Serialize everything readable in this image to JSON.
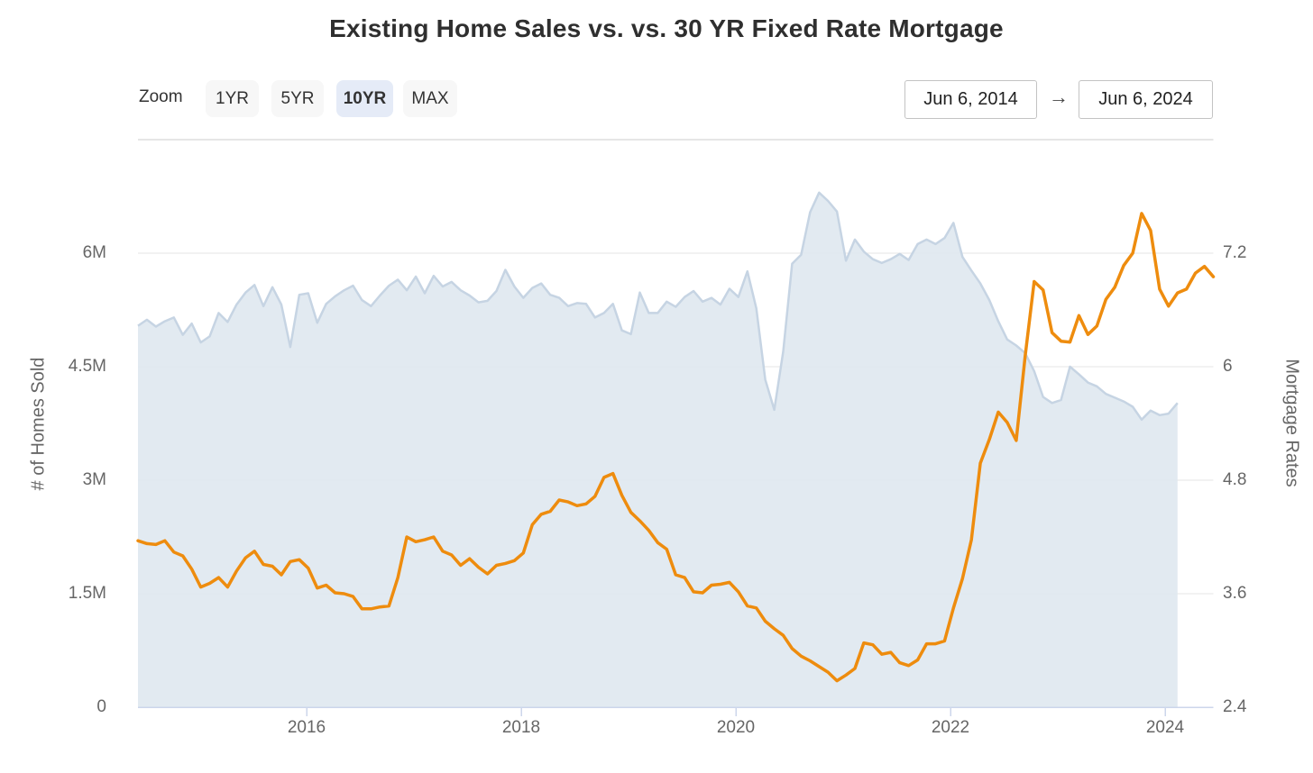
{
  "title": "Existing Home Sales vs. vs. 30 YR Fixed Rate Mortgage",
  "toolbar": {
    "zoom_label": "Zoom",
    "buttons": [
      {
        "label": "1YR",
        "active": false
      },
      {
        "label": "5YR",
        "active": false
      },
      {
        "label": "10YR",
        "active": true
      },
      {
        "label": "MAX",
        "active": false
      }
    ],
    "range_start": "Jun 6, 2014",
    "arrow": "→",
    "range_end": "Jun 6, 2024"
  },
  "chart_data": {
    "type": "area+line",
    "x_start": "Jun 2014",
    "x_end": "Jun 2024",
    "x_ticks": [
      "2016",
      "2018",
      "2020",
      "2022",
      "2024"
    ],
    "left_axis": {
      "title": "# of Homes Sold",
      "ticks": [
        "6M",
        "4.5M",
        "3M",
        "1.5M",
        "0"
      ],
      "range": [
        0,
        7500000
      ],
      "grid": true
    },
    "right_axis": {
      "title": "Mortgage Rates",
      "ticks": [
        "7.2",
        "6",
        "4.8",
        "3.6",
        "2.4"
      ],
      "range": [
        2.4,
        8.4
      ]
    },
    "series": [
      {
        "name": "Existing Home Sales",
        "type": "area",
        "axis": "left",
        "unit": "millions of homes, monthly, Jun 2014 - Feb 2024",
        "fill_color": "#dfe8f0",
        "line_color": "#c6d4e3",
        "values": [
          5.04,
          5.12,
          5.03,
          5.1,
          5.15,
          4.92,
          5.07,
          4.82,
          4.9,
          5.21,
          5.09,
          5.32,
          5.48,
          5.58,
          5.3,
          5.55,
          5.32,
          4.76,
          5.45,
          5.47,
          5.08,
          5.33,
          5.43,
          5.51,
          5.57,
          5.38,
          5.3,
          5.44,
          5.57,
          5.65,
          5.51,
          5.69,
          5.47,
          5.7,
          5.56,
          5.62,
          5.51,
          5.44,
          5.35,
          5.37,
          5.5,
          5.78,
          5.56,
          5.41,
          5.54,
          5.6,
          5.45,
          5.41,
          5.3,
          5.34,
          5.33,
          5.15,
          5.21,
          5.33,
          4.98,
          4.93,
          5.48,
          5.21,
          5.21,
          5.36,
          5.29,
          5.42,
          5.5,
          5.36,
          5.41,
          5.32,
          5.53,
          5.42,
          5.76,
          5.27,
          4.33,
          3.93,
          4.7,
          5.86,
          5.98,
          6.54,
          6.8,
          6.69,
          6.55,
          5.9,
          6.18,
          6.02,
          5.92,
          5.87,
          5.92,
          5.99,
          5.91,
          6.12,
          6.18,
          6.12,
          6.2,
          6.4,
          5.95,
          5.77,
          5.6,
          5.38,
          5.1,
          4.86,
          4.78,
          4.68,
          4.44,
          4.1,
          4.02,
          4.06,
          4.5,
          4.4,
          4.29,
          4.24,
          4.14,
          4.09,
          4.04,
          3.97,
          3.8,
          3.92,
          3.86,
          3.88,
          4.02
        ]
      },
      {
        "name": "30 YR Fixed Rate Mortgage",
        "type": "line",
        "axis": "right",
        "unit": "percent, monthly, Jun 2014 - Jun 2024",
        "line_color": "#ee8c0e",
        "values": [
          4.16,
          4.13,
          4.12,
          4.16,
          4.04,
          4.0,
          3.86,
          3.67,
          3.71,
          3.77,
          3.67,
          3.84,
          3.98,
          4.05,
          3.91,
          3.89,
          3.8,
          3.94,
          3.96,
          3.87,
          3.66,
          3.69,
          3.61,
          3.6,
          3.57,
          3.44,
          3.44,
          3.46,
          3.47,
          3.77,
          4.2,
          4.15,
          4.17,
          4.2,
          4.05,
          4.01,
          3.9,
          3.97,
          3.88,
          3.81,
          3.9,
          3.92,
          3.95,
          4.03,
          4.33,
          4.44,
          4.47,
          4.59,
          4.57,
          4.53,
          4.55,
          4.63,
          4.83,
          4.87,
          4.64,
          4.46,
          4.37,
          4.27,
          4.14,
          4.07,
          3.8,
          3.77,
          3.62,
          3.61,
          3.69,
          3.7,
          3.72,
          3.62,
          3.47,
          3.45,
          3.31,
          3.23,
          3.16,
          3.02,
          2.94,
          2.89,
          2.83,
          2.77,
          2.68,
          2.74,
          2.81,
          3.08,
          3.06,
          2.96,
          2.98,
          2.87,
          2.84,
          2.9,
          3.07,
          3.07,
          3.1,
          3.45,
          3.76,
          4.17,
          4.98,
          5.23,
          5.52,
          5.41,
          5.22,
          6.11,
          6.9,
          6.81,
          6.36,
          6.27,
          6.26,
          6.54,
          6.34,
          6.43,
          6.71,
          6.84,
          7.07,
          7.2,
          7.62,
          7.44,
          6.82,
          6.64,
          6.78,
          6.82,
          6.99,
          7.06,
          6.95
        ]
      }
    ],
    "colors": {
      "grid_line": "#e6e6e6",
      "x_axis_line": "#ccd6eb",
      "active_button_bg": "#e5ebf7",
      "area_fill": "#dfe8f0",
      "rate_line": "#ee8c0e"
    }
  }
}
